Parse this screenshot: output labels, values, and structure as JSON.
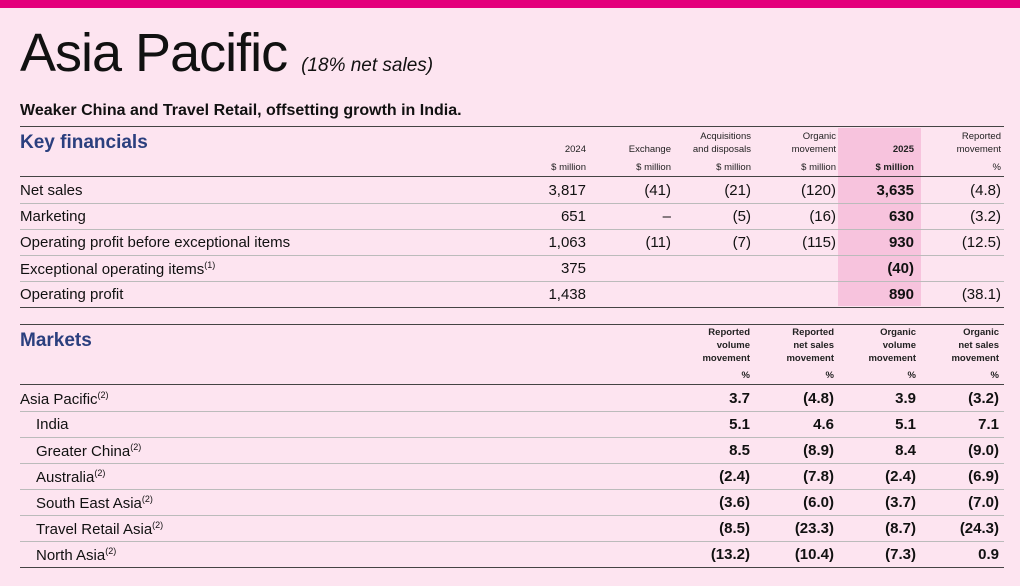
{
  "colors": {
    "accent_bar": "#e4007c",
    "heading_blue": "#2b3f7e",
    "highlight": "#f7c3dd",
    "background": "#fde4f0"
  },
  "header": {
    "title": "Asia Pacific",
    "subtitle": "(18% net sales)",
    "tagline": "Weaker China and Travel Retail, offsetting growth in India."
  },
  "key_financials": {
    "title": "Key financials",
    "columns": [
      {
        "line1": "",
        "line2": "2024",
        "unit": "$ million"
      },
      {
        "line1": "",
        "line2": "Exchange",
        "unit": "$ million"
      },
      {
        "line1": "Acquisitions",
        "line2": "and disposals",
        "unit": "$ million"
      },
      {
        "line1": "Organic",
        "line2": "movement",
        "unit": "$ million"
      },
      {
        "line1": "",
        "line2": "2025",
        "unit": "$ million"
      },
      {
        "line1": "Reported",
        "line2": "movement",
        "unit": "%"
      }
    ],
    "rows": [
      {
        "label": "Net sales",
        "sup": "",
        "values": [
          "3,817",
          "(41)",
          "(21)",
          "(120)",
          "3,635",
          "(4.8)"
        ]
      },
      {
        "label": "Marketing",
        "sup": "",
        "values": [
          "651",
          "–",
          "(5)",
          "(16)",
          "630",
          "(3.2)"
        ]
      },
      {
        "label": "Operating profit before exceptional items",
        "sup": "",
        "values": [
          "1,063",
          "(11)",
          "(7)",
          "(115)",
          "930",
          "(12.5)"
        ]
      },
      {
        "label": "Exceptional operating items",
        "sup": "(1)",
        "values": [
          "375",
          "",
          "",
          "",
          "(40)",
          ""
        ]
      },
      {
        "label": "Operating profit",
        "sup": "",
        "values": [
          "1,438",
          "",
          "",
          "",
          "890",
          "(38.1)"
        ]
      }
    ]
  },
  "markets": {
    "title": "Markets",
    "columns": [
      {
        "lines": [
          "Reported",
          "volume",
          "movement"
        ],
        "unit": "%"
      },
      {
        "lines": [
          "Reported",
          "net sales",
          "movement"
        ],
        "unit": "%"
      },
      {
        "lines": [
          "Organic",
          "volume",
          "movement"
        ],
        "unit": "%"
      },
      {
        "lines": [
          "Organic",
          "net sales",
          "movement"
        ],
        "unit": "%"
      }
    ],
    "rows": [
      {
        "label": "Asia Pacific",
        "sup": "(2)",
        "values": [
          "3.7",
          "(4.8)",
          "3.9",
          "(3.2)"
        ]
      },
      {
        "label": "India",
        "sup": "",
        "values": [
          "5.1",
          "4.6",
          "5.1",
          "7.1"
        ]
      },
      {
        "label": "Greater China",
        "sup": "(2)",
        "values": [
          "8.5",
          "(8.9)",
          "8.4",
          "(9.0)"
        ]
      },
      {
        "label": "Australia",
        "sup": "(2)",
        "values": [
          "(2.4)",
          "(7.8)",
          "(2.4)",
          "(6.9)"
        ]
      },
      {
        "label": "South East Asia",
        "sup": "(2)",
        "values": [
          "(3.6)",
          "(6.0)",
          "(3.7)",
          "(7.0)"
        ]
      },
      {
        "label": "Travel Retail Asia",
        "sup": "(2)",
        "values": [
          "(8.5)",
          "(23.3)",
          "(8.7)",
          "(24.3)"
        ]
      },
      {
        "label": "North Asia",
        "sup": "(2)",
        "values": [
          "(13.2)",
          "(10.4)",
          "(7.3)",
          "0.9"
        ]
      }
    ]
  }
}
